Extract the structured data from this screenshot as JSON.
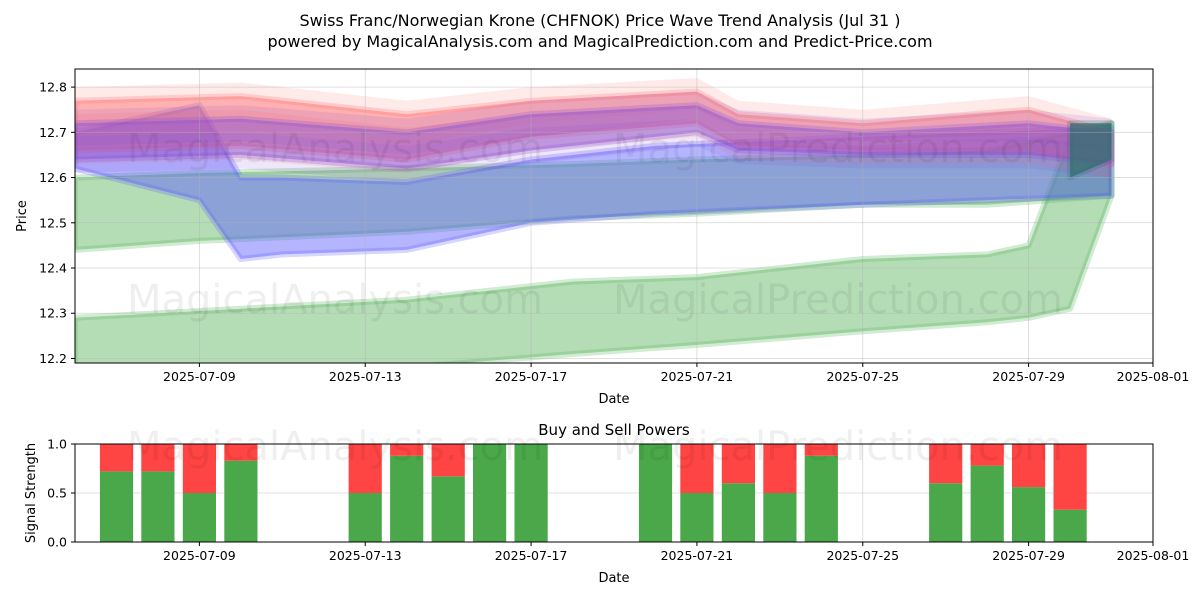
{
  "title_line1": "Swiss Franc/Norwegian Krone (CHFNOK) Price Wave Trend Analysis (Jul 31 )",
  "title_line2": "powered by MagicalAnalysis.com and MagicalPrediction.com and Predict-Price.com",
  "watermarks": [
    "MagicalAnalysis.com",
    "MagicalPrediction.com"
  ],
  "colors": {
    "band_green": "#4caf50",
    "band_blue": "#5b5bff",
    "band_red": "#ff6b6b",
    "band_purple": "#8a4fd8",
    "band_teal": "#2f6f6f",
    "buy": "#4aa84a",
    "sell": "#ff4444"
  },
  "chart_data": [
    {
      "type": "area",
      "title": "",
      "xlabel": "Date",
      "ylabel": "Price",
      "xlim": [
        "2025-07-06",
        "2025-08-01"
      ],
      "ylim": [
        12.19,
        12.84
      ],
      "x_ticks": [
        "2025-07-09",
        "2025-07-13",
        "2025-07-17",
        "2025-07-21",
        "2025-07-25",
        "2025-07-29",
        "2025-08-01"
      ],
      "y_ticks": [
        "12.2",
        "12.3",
        "12.4",
        "12.5",
        "12.6",
        "12.7",
        "12.8"
      ],
      "grid": true,
      "series": [
        {
          "color": "band_green",
          "x": [
            "2025-07-06",
            "2025-07-10",
            "2025-07-14",
            "2025-07-18",
            "2025-07-21",
            "2025-07-25",
            "2025-07-28",
            "2025-07-29",
            "2025-07-30",
            "2025-07-31"
          ],
          "lower": [
            12.15,
            12.16,
            12.18,
            12.21,
            12.23,
            12.26,
            12.28,
            12.29,
            12.31,
            12.56
          ],
          "upper": [
            12.29,
            12.31,
            12.33,
            12.37,
            12.38,
            12.42,
            12.43,
            12.45,
            12.69,
            12.72
          ]
        },
        {
          "color": "band_green",
          "x": [
            "2025-07-06",
            "2025-07-09",
            "2025-07-14",
            "2025-07-18",
            "2025-07-21",
            "2025-07-25",
            "2025-07-28",
            "2025-07-31"
          ],
          "lower": [
            12.44,
            12.46,
            12.48,
            12.51,
            12.52,
            12.54,
            12.54,
            12.56
          ],
          "upper": [
            12.6,
            12.61,
            12.62,
            12.63,
            12.64,
            12.65,
            12.66,
            12.72
          ]
        },
        {
          "color": "band_blue",
          "x": [
            "2025-07-06",
            "2025-07-09",
            "2025-07-10",
            "2025-07-11",
            "2025-07-14",
            "2025-07-17",
            "2025-07-20",
            "2025-07-25",
            "2025-07-31"
          ],
          "lower": [
            12.62,
            12.55,
            12.42,
            12.43,
            12.44,
            12.5,
            12.52,
            12.54,
            12.56
          ],
          "upper": [
            12.7,
            12.76,
            12.6,
            12.6,
            12.59,
            12.64,
            12.67,
            12.69,
            12.71
          ]
        },
        {
          "color": "band_red",
          "x": [
            "2025-07-06",
            "2025-07-10",
            "2025-07-14",
            "2025-07-17",
            "2025-07-21",
            "2025-07-22",
            "2025-07-25",
            "2025-07-29",
            "2025-07-31"
          ],
          "lower": [
            12.66,
            12.67,
            12.64,
            12.69,
            12.72,
            12.67,
            12.66,
            12.66,
            12.63
          ],
          "upper": [
            12.77,
            12.78,
            12.74,
            12.77,
            12.79,
            12.74,
            12.72,
            12.75,
            12.7
          ]
        },
        {
          "color": "band_purple",
          "x": [
            "2025-07-06",
            "2025-07-10",
            "2025-07-14",
            "2025-07-17",
            "2025-07-21",
            "2025-07-22",
            "2025-07-25",
            "2025-07-29",
            "2025-07-31"
          ],
          "lower": [
            12.64,
            12.65,
            12.62,
            12.66,
            12.7,
            12.66,
            12.65,
            12.65,
            12.63
          ],
          "upper": [
            12.72,
            12.73,
            12.7,
            12.74,
            12.76,
            12.72,
            12.7,
            12.72,
            12.7
          ]
        },
        {
          "color": "band_teal",
          "x": [
            "2025-07-30",
            "2025-07-31"
          ],
          "lower": [
            12.6,
            12.64
          ],
          "upper": [
            12.72,
            12.72
          ]
        }
      ]
    },
    {
      "type": "bar",
      "title": "Buy and Sell Powers",
      "xlabel": "Date",
      "ylabel": "Signal Strength",
      "xlim": [
        "2025-07-06",
        "2025-08-01"
      ],
      "ylim": [
        0,
        1
      ],
      "x_ticks": [
        "2025-07-09",
        "2025-07-13",
        "2025-07-17",
        "2025-07-21",
        "2025-07-25",
        "2025-07-29",
        "2025-08-01"
      ],
      "y_ticks": [
        "0.0",
        "0.5",
        "1.0"
      ],
      "grid": true,
      "categories": [
        "2025-07-07",
        "2025-07-08",
        "2025-07-09",
        "2025-07-10",
        "2025-07-13",
        "2025-07-14",
        "2025-07-15",
        "2025-07-16",
        "2025-07-17",
        "2025-07-20",
        "2025-07-21",
        "2025-07-22",
        "2025-07-23",
        "2025-07-24",
        "2025-07-27",
        "2025-07-28",
        "2025-07-29",
        "2025-07-30"
      ],
      "series": [
        {
          "color": "buy",
          "values": [
            0.72,
            0.72,
            0.5,
            0.83,
            0.5,
            0.88,
            0.67,
            1.0,
            1.0,
            1.0,
            0.5,
            0.6,
            0.5,
            0.88,
            0.6,
            0.78,
            0.56,
            0.33
          ]
        },
        {
          "color": "sell",
          "values": [
            0.28,
            0.28,
            0.5,
            0.17,
            0.5,
            0.12,
            0.33,
            0.0,
            0.0,
            0.0,
            0.5,
            0.4,
            0.5,
            0.12,
            0.4,
            0.22,
            0.44,
            0.67
          ]
        }
      ]
    }
  ]
}
